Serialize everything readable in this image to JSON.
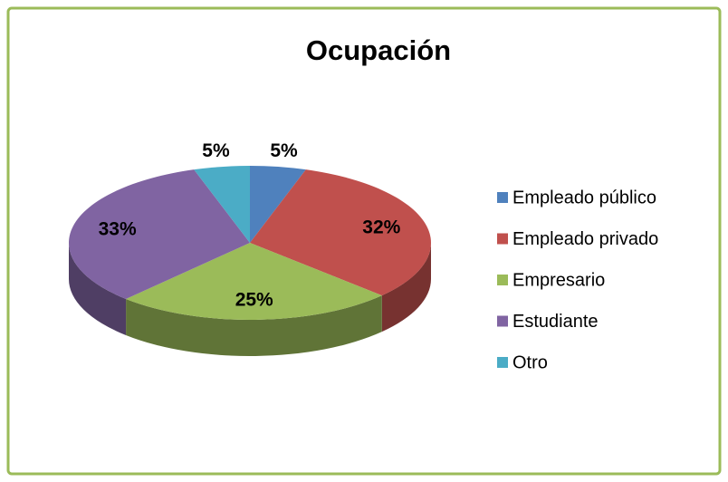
{
  "chart_data": {
    "type": "pie",
    "title": "Ocupación",
    "categories": [
      "Empleado público",
      "Empleado privado",
      "Empresario",
      "Estudiante",
      "Otro"
    ],
    "values": [
      5,
      32,
      25,
      33,
      5
    ],
    "value_labels": [
      "5%",
      "32%",
      "25%",
      "33%",
      "5%"
    ],
    "colors": [
      "#4f81bd",
      "#c0504d",
      "#9bbb59",
      "#8064a2",
      "#4bacc6"
    ],
    "legend": "right"
  }
}
